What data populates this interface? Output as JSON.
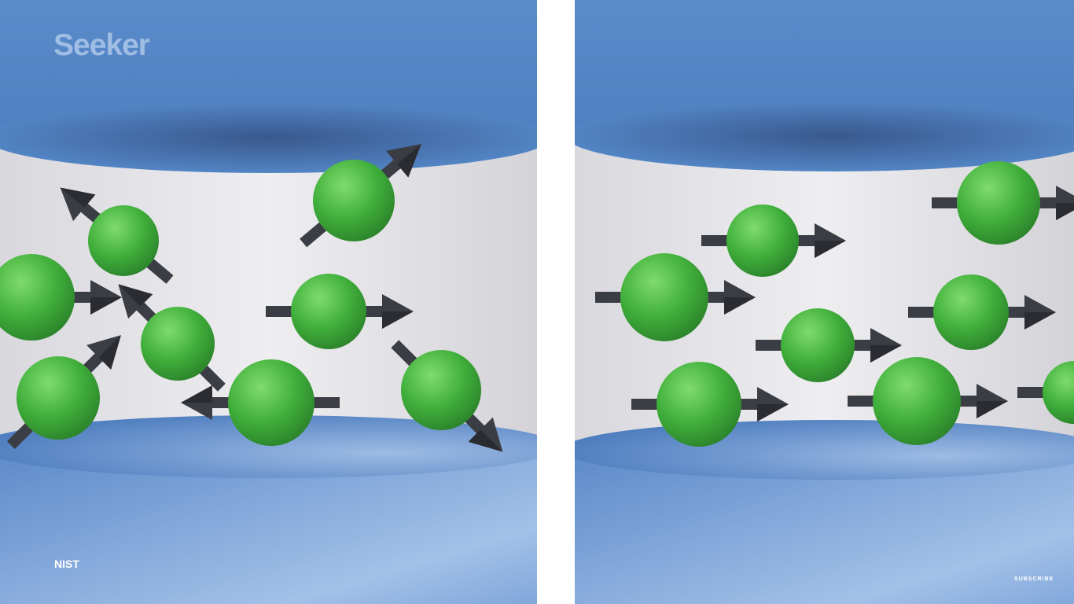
{
  "overlay": {
    "brand_logo": "Seeker",
    "credit": "NIST",
    "subscribe_label": "SUBSCRIBE"
  },
  "colors": {
    "cylinder": "#5b8ccb",
    "cylinder_dark": "#3f68a6",
    "cylinder_light": "#a7c4ea",
    "chamber": "#e3e2e6",
    "atom": "#3fae3a",
    "atom_highlight": "#7bd86a",
    "arrow": "#3b3d44",
    "divider": "#ffffff"
  },
  "panels": [
    {
      "name": "left",
      "atoms": [
        {
          "spin": "up-right"
        },
        {
          "spin": "up-left"
        },
        {
          "spin": "right"
        },
        {
          "spin": "right"
        },
        {
          "spin": "up-left"
        },
        {
          "spin": "up-right"
        },
        {
          "spin": "left"
        },
        {
          "spin": "down-right"
        }
      ]
    },
    {
      "name": "right",
      "atoms": [
        {
          "spin": "right"
        },
        {
          "spin": "right"
        },
        {
          "spin": "right"
        },
        {
          "spin": "right"
        },
        {
          "spin": "right"
        },
        {
          "spin": "right"
        },
        {
          "spin": "right"
        },
        {
          "spin": "right"
        }
      ]
    }
  ]
}
